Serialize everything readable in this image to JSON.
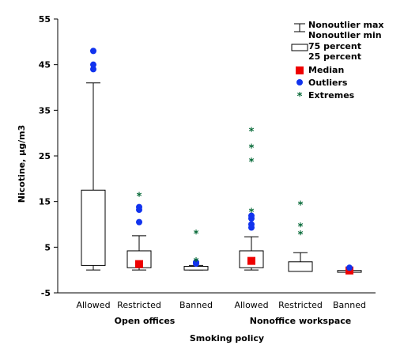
{
  "chart_data": {
    "type": "boxplot",
    "xlabel": "Smoking policy",
    "ylabel": "Nicotine, µg/m3",
    "ylim": [
      -5,
      55
    ],
    "yticks": [
      -5,
      5,
      15,
      25,
      35,
      45,
      55
    ],
    "groups": [
      {
        "label": "Open offices",
        "members": [
          0,
          1,
          2
        ]
      },
      {
        "label": "Nonoffice workspace",
        "members": [
          3,
          4,
          5
        ]
      }
    ],
    "categories": [
      {
        "label": "Allowed",
        "min": 0,
        "q1": 1,
        "median": null,
        "q3": 17.5,
        "max": 41,
        "outliers": [
          44,
          45,
          48
        ],
        "extremes": []
      },
      {
        "label": "Restricted",
        "min": 0,
        "q1": 0.5,
        "median": 1.3,
        "q3": 4.2,
        "max": 7.5,
        "outliers": [
          10.5,
          13.2,
          13.8
        ],
        "extremes": [
          16.2
        ]
      },
      {
        "label": "Banned",
        "min": 0,
        "q1": 0,
        "median": null,
        "q3": 0.8,
        "max": 1,
        "outliers": [
          1.4,
          1.7
        ],
        "extremes": [
          1.9,
          8
        ]
      },
      {
        "label": "Allowed",
        "min": 0,
        "q1": 0.5,
        "median": 2,
        "q3": 4.2,
        "max": 7.3,
        "outliers": [
          9.3,
          10,
          11.3,
          11.9
        ],
        "extremes": [
          12.8,
          23.8,
          26.8,
          30.5
        ]
      },
      {
        "label": "Restricted",
        "min": null,
        "q1": -0.3,
        "median": null,
        "q3": 1.8,
        "max": 3.8,
        "outliers": [],
        "extremes": [
          7.8,
          9.6,
          14.3
        ]
      },
      {
        "label": "Banned",
        "min": null,
        "q1": -0.5,
        "median": -0.1,
        "q3": -0.1,
        "max": null,
        "outliers": [
          0.5
        ],
        "extremes": []
      }
    ],
    "legend": {
      "position": "top-right",
      "items": [
        {
          "kind": "whisker",
          "labels": [
            "Nonoutlier max",
            "Nonoutlier min"
          ]
        },
        {
          "kind": "box",
          "labels": [
            "75 percent",
            "25 percent"
          ]
        },
        {
          "kind": "median",
          "labels": [
            "Median"
          ]
        },
        {
          "kind": "outlier",
          "labels": [
            "Outliers"
          ]
        },
        {
          "kind": "extreme",
          "labels": [
            "Extremes"
          ]
        }
      ]
    },
    "colors": {
      "median": "#ee0000",
      "outlier": "#1133ee",
      "extreme": "#006633"
    },
    "extreme_marker": "*"
  }
}
